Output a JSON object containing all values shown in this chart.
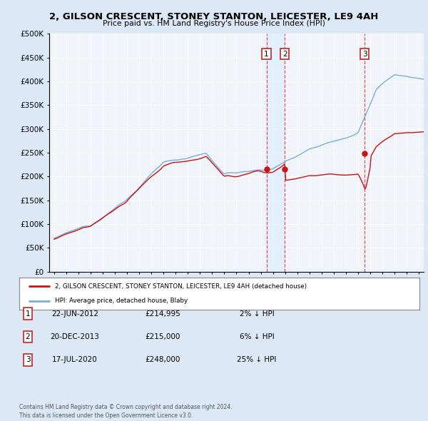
{
  "title": "2, GILSON CRESCENT, STONEY STANTON, LEICESTER, LE9 4AH",
  "subtitle": "Price paid vs. HM Land Registry's House Price Index (HPI)",
  "ytick_values": [
    0,
    50000,
    100000,
    150000,
    200000,
    250000,
    300000,
    350000,
    400000,
    450000,
    500000
  ],
  "ylim": [
    0,
    500000
  ],
  "chart_bg": "#f0f4fa",
  "fig_bg": "#dce8f5",
  "grid_color": "#ffffff",
  "hpi_color": "#7dadd4",
  "hpi_lw": 1.0,
  "price_color": "#cc1111",
  "price_lw": 1.0,
  "vline_color": "#dd3333",
  "shade_color": "#ddeeff",
  "legend1": "2, GILSON CRESCENT, STONEY STANTON, LEICESTER, LE9 4AH (detached house)",
  "legend2": "HPI: Average price, detached house, Blaby",
  "transactions": [
    {
      "label": "1",
      "date_x": 2012.47,
      "price": 214995
    },
    {
      "label": "2",
      "date_x": 2013.97,
      "price": 215000
    },
    {
      "label": "3",
      "date_x": 2020.54,
      "price": 248000
    }
  ],
  "table_rows": [
    {
      "num": "1",
      "date": "22-JUN-2012",
      "price": "£214,995",
      "pct": "2% ↓ HPI"
    },
    {
      "num": "2",
      "date": "20-DEC-2013",
      "price": "£215,000",
      "pct": "6% ↓ HPI"
    },
    {
      "num": "3",
      "date": "17-JUL-2020",
      "price": "£248,000",
      "pct": "25% ↓ HPI"
    }
  ],
  "footer": "Contains HM Land Registry data © Crown copyright and database right 2024.\nThis data is licensed under the Open Government Licence v3.0.",
  "xmin": 1994.6,
  "xmax": 2025.4
}
